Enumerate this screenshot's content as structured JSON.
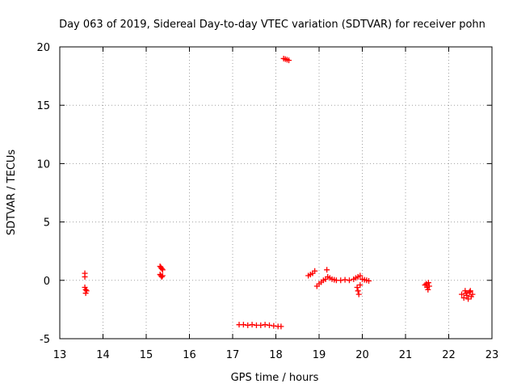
{
  "chart_data": {
    "type": "scatter",
    "title": "Day 063 of 2019, Sidereal Day-to-day VTEC variation (SDTVAR) for receiver pohn",
    "xlabel": "GPS time / hours",
    "ylabel": "SDTVAR / TECUs",
    "xlim": [
      13,
      23
    ],
    "ylim": [
      -5,
      20
    ],
    "xticks": [
      13,
      14,
      15,
      16,
      17,
      18,
      19,
      20,
      21,
      22,
      23
    ],
    "yticks": [
      -5,
      0,
      5,
      10,
      15,
      20
    ],
    "grid": true,
    "marker": "+",
    "series_color": "#ff0000",
    "series": [
      {
        "name": "SDTVAR",
        "points": [
          [
            13.58,
            0.6
          ],
          [
            13.58,
            0.3
          ],
          [
            13.58,
            -0.6
          ],
          [
            13.6,
            -0.8
          ],
          [
            13.6,
            -1.1
          ],
          [
            13.62,
            -0.9
          ],
          [
            15.32,
            1.2
          ],
          [
            15.34,
            1.1
          ],
          [
            15.36,
            1.0
          ],
          [
            15.38,
            0.9
          ],
          [
            15.32,
            0.5
          ],
          [
            15.34,
            0.4
          ],
          [
            15.36,
            0.3
          ],
          [
            15.38,
            0.4
          ],
          [
            17.15,
            -3.8
          ],
          [
            17.25,
            -3.8
          ],
          [
            17.35,
            -3.85
          ],
          [
            17.45,
            -3.8
          ],
          [
            17.55,
            -3.85
          ],
          [
            17.65,
            -3.85
          ],
          [
            17.75,
            -3.8
          ],
          [
            17.85,
            -3.85
          ],
          [
            17.95,
            -3.9
          ],
          [
            18.05,
            -3.95
          ],
          [
            18.12,
            -3.95
          ],
          [
            18.18,
            19.0
          ],
          [
            18.22,
            18.95
          ],
          [
            18.26,
            18.9
          ],
          [
            18.3,
            18.85
          ],
          [
            18.75,
            0.4
          ],
          [
            18.8,
            0.5
          ],
          [
            18.85,
            0.6
          ],
          [
            18.9,
            0.8
          ],
          [
            18.95,
            -0.5
          ],
          [
            19.0,
            -0.3
          ],
          [
            19.05,
            -0.15
          ],
          [
            19.1,
            0.0
          ],
          [
            19.15,
            0.1
          ],
          [
            19.18,
            0.9
          ],
          [
            19.2,
            0.3
          ],
          [
            19.25,
            0.2
          ],
          [
            19.3,
            0.1
          ],
          [
            19.35,
            0.05
          ],
          [
            19.4,
            0.0
          ],
          [
            19.5,
            0.0
          ],
          [
            19.6,
            0.05
          ],
          [
            19.7,
            0.0
          ],
          [
            19.8,
            0.1
          ],
          [
            19.85,
            0.2
          ],
          [
            19.9,
            0.3
          ],
          [
            19.95,
            0.4
          ],
          [
            19.88,
            -0.6
          ],
          [
            19.9,
            -0.9
          ],
          [
            19.92,
            -1.2
          ],
          [
            19.95,
            -0.4
          ],
          [
            20.0,
            0.1
          ],
          [
            20.05,
            0.05
          ],
          [
            20.1,
            0.0
          ],
          [
            20.15,
            -0.05
          ],
          [
            21.45,
            -0.4
          ],
          [
            21.48,
            -0.3
          ],
          [
            21.5,
            -0.6
          ],
          [
            21.52,
            -0.8
          ],
          [
            21.55,
            -0.5
          ],
          [
            21.53,
            -0.2
          ],
          [
            22.3,
            -1.2
          ],
          [
            22.35,
            -1.5
          ],
          [
            22.38,
            -0.9
          ],
          [
            22.4,
            -1.1
          ],
          [
            22.42,
            -1.3
          ],
          [
            22.45,
            -1.6
          ],
          [
            22.48,
            -1.0
          ],
          [
            22.5,
            -0.9
          ],
          [
            22.52,
            -1.4
          ],
          [
            22.55,
            -1.2
          ]
        ]
      }
    ]
  }
}
